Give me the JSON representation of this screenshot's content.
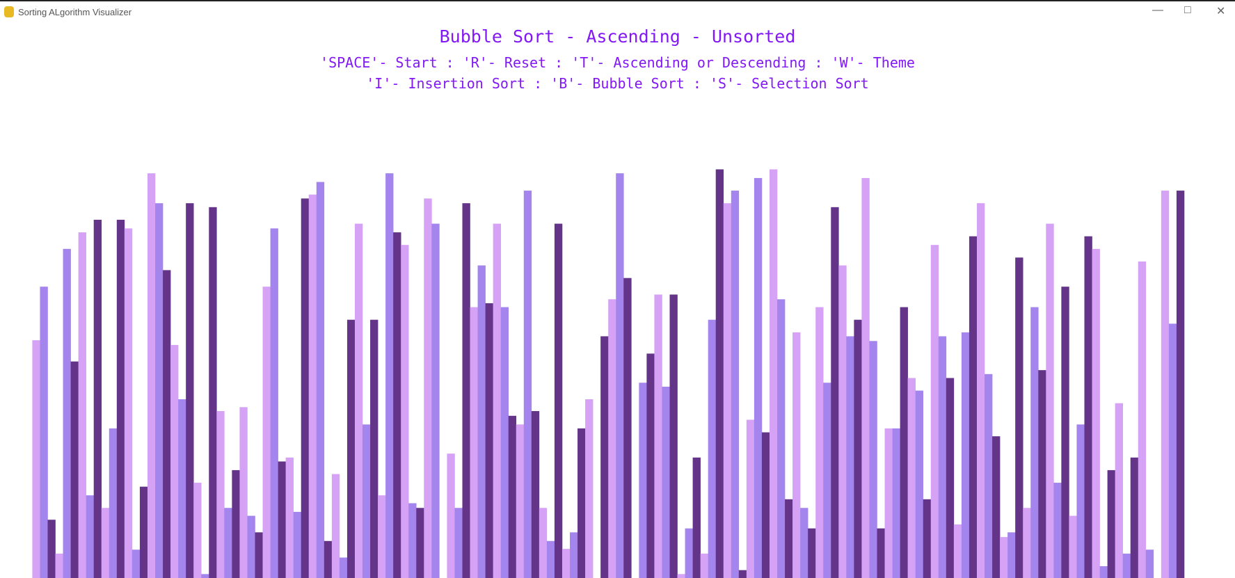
{
  "window": {
    "title": "Sorting ALgorithm Visualizer"
  },
  "header": {
    "title": "Bubble Sort - Ascending - Unsorted",
    "controls": [
      "'SPACE'- Start : 'R'- Reset : 'T'- Ascending or Descending : 'W'- Theme",
      "'I'- Insertion Sort : 'B'- Bubble Sort : 'S'- Selection Sort"
    ]
  },
  "chart_data": {
    "type": "bar",
    "colors": [
      "#d6a2f5",
      "#a485ee",
      "#643489"
    ],
    "values": [
      302,
      370,
      74,
      31,
      418,
      275,
      439,
      105,
      455,
      89,
      190,
      455,
      444,
      36,
      116,
      514,
      476,
      391,
      296,
      227,
      476,
      121,
      5,
      471,
      212,
      89,
      137,
      217,
      79,
      58,
      370,
      444,
      148,
      153,
      84,
      482,
      487,
      503,
      47,
      132,
      26,
      328,
      450,
      195,
      328,
      105,
      514,
      439,
      423,
      95,
      89,
      482,
      450,
      0,
      158,
      89,
      476,
      344,
      397,
      349,
      450,
      344,
      206,
      195,
      492,
      212,
      89,
      47,
      450,
      37,
      58,
      190,
      227,
      0,
      307,
      354,
      514,
      381,
      0,
      248,
      285,
      360,
      243,
      360,
      5,
      63,
      153,
      31,
      328,
      519,
      476,
      492,
      10,
      201,
      508,
      185,
      519,
      354,
      100,
      312,
      89,
      63,
      344,
      248,
      471,
      397,
      307,
      328,
      508,
      301,
      63,
      190,
      190,
      344,
      254,
      238,
      100,
      423,
      307,
      254,
      68,
      312,
      434,
      476,
      259,
      180,
      52,
      58,
      407,
      89,
      344,
      264,
      450,
      121,
      370,
      79,
      195,
      434,
      418,
      15,
      137,
      222,
      31,
      153,
      402,
      36,
      0,
      492,
      323,
      492
    ]
  }
}
